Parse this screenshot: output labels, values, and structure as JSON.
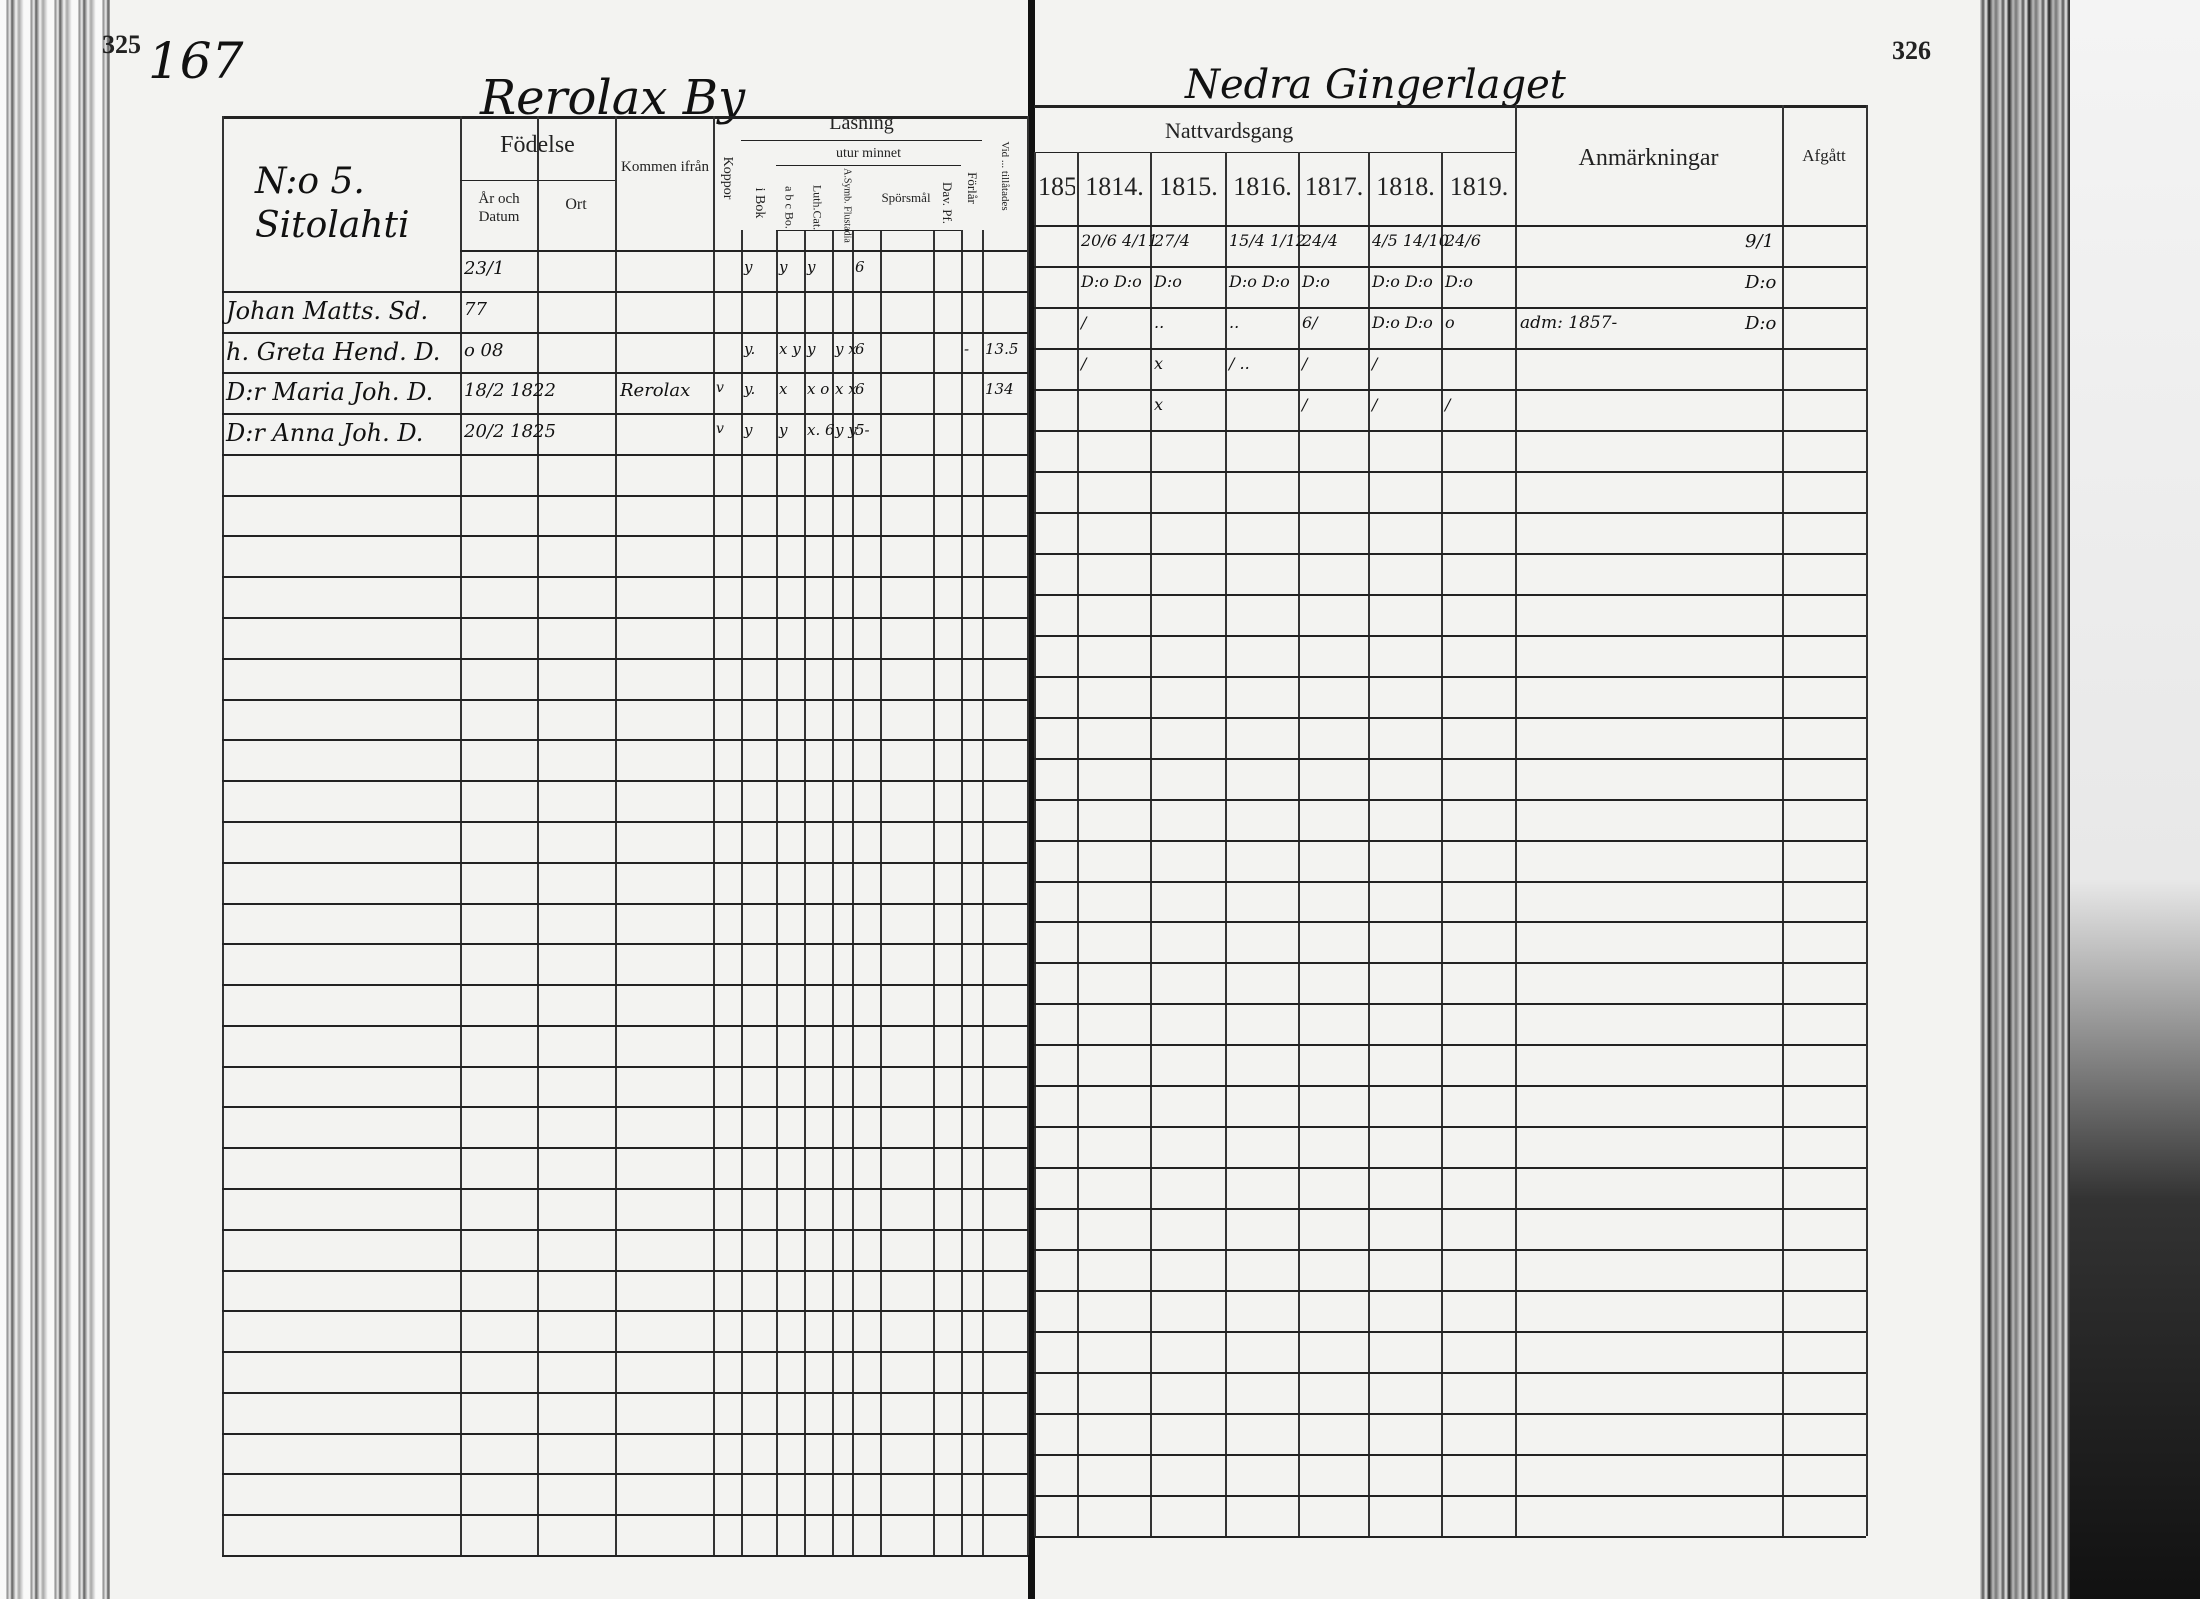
{
  "page_numbers": {
    "left": "325",
    "left_handwritten": "167",
    "right": "326"
  },
  "left_page": {
    "village_title": "Rerolax By",
    "household_label": "N:o 5. Sitolahti",
    "headers": {
      "birth": "Födelse",
      "year_date": "År och Datum",
      "place": "Ort",
      "came_from": "Kommen ifrån",
      "smallpox": "Koppor",
      "reading": "Läsning",
      "by_heart": "utur minnet",
      "in_book": "i Bok",
      "abc_book": "a b c Bo.",
      "luth_cat": "Luth.Cat.",
      "a_symb": "A.Symb. Flustadia",
      "questions": "Spörsmål",
      "dav_pf": "Dav. Pf.",
      "understanding": "Förlår",
      "admitted": "Vid ... tillåtades"
    },
    "rows": [
      {
        "name": "",
        "birth": "23/1",
        "place": "",
        "from": "",
        "smallpox": "",
        "marks": [
          "y",
          "y",
          "y",
          "",
          "6",
          "",
          "",
          ""
        ]
      },
      {
        "name": "Johan Matts. Sd.",
        "birth": "77",
        "place": "",
        "from": "",
        "smallpox": "",
        "marks": [
          "",
          "",
          "",
          "",
          "",
          "",
          "",
          ""
        ]
      },
      {
        "name": "h. Greta Hend. D.",
        "birth": "o 08",
        "place": "",
        "from": "",
        "smallpox": "",
        "marks": [
          "y.",
          "x y",
          "y",
          "y x",
          "6",
          "",
          "-",
          "13.5"
        ]
      },
      {
        "name": "D:r Maria Joh. D.",
        "birth": "18/2 1822",
        "place": "",
        "from": "Rerolax",
        "smallpox": "v",
        "marks": [
          "y.",
          "x",
          "x o",
          "x x",
          "6",
          "",
          "",
          "134"
        ]
      },
      {
        "name": "D:r Anna Joh. D.",
        "birth": "20/2 1825",
        "place": "",
        "from": "",
        "smallpox": "v",
        "marks": [
          "y",
          "y",
          "x. 6",
          "y y",
          "5-",
          "",
          "",
          ""
        ]
      }
    ]
  },
  "right_page": {
    "section_title": "Nedra Gingerlaget",
    "headers": {
      "communion": "Nattvardsgang",
      "years": [
        "185",
        "1814.",
        "1815.",
        "1816.",
        "1817.",
        "1818.",
        "1819."
      ],
      "remarks": "Anmärkningar",
      "departed": "Afgått"
    },
    "rows": [
      {
        "entries": [
          "",
          "20/6 4/11",
          "27/4",
          "15/4 1/12",
          "24/4",
          "4/5 14/10",
          "24/6"
        ],
        "remarks": "",
        "departed": "9/1"
      },
      {
        "entries": [
          "",
          "D:o D:o",
          "D:o",
          "D:o D:o",
          "D:o",
          "D:o D:o",
          "D:o"
        ],
        "remarks": "",
        "departed": "D:o"
      },
      {
        "entries": [
          "",
          "/",
          "..",
          "..",
          "6/",
          "D:o D:o",
          "o"
        ],
        "remarks": "adm: 1857-",
        "departed": "D:o"
      },
      {
        "entries": [
          "",
          "/",
          "x",
          "/ ..",
          "/",
          "/",
          ""
        ],
        "remarks": "",
        "departed": ""
      },
      {
        "entries": [
          "",
          "",
          "x",
          "",
          "/",
          "/",
          "/"
        ],
        "remarks": "",
        "departed": ""
      }
    ]
  }
}
